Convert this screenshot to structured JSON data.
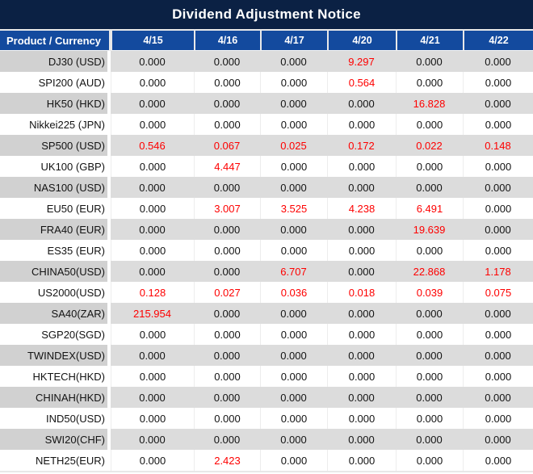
{
  "chart_data": {
    "type": "table",
    "title": "Dividend Adjustment Notice",
    "columns": [
      "Product / Currency",
      "4/15",
      "4/16",
      "4/17",
      "4/20",
      "4/21",
      "4/22"
    ],
    "rows": [
      {
        "label": "DJ30 (USD)",
        "values": [
          "0.000",
          "0.000",
          "0.000",
          "9.297",
          "0.000",
          "0.000"
        ],
        "red": [
          3
        ]
      },
      {
        "label": "SPI200 (AUD)",
        "values": [
          "0.000",
          "0.000",
          "0.000",
          "0.564",
          "0.000",
          "0.000"
        ],
        "red": [
          3
        ]
      },
      {
        "label": "HK50 (HKD)",
        "values": [
          "0.000",
          "0.000",
          "0.000",
          "0.000",
          "16.828",
          "0.000"
        ],
        "red": [
          4
        ]
      },
      {
        "label": "Nikkei225 (JPN)",
        "values": [
          "0.000",
          "0.000",
          "0.000",
          "0.000",
          "0.000",
          "0.000"
        ],
        "red": []
      },
      {
        "label": "SP500 (USD)",
        "values": [
          "0.546",
          "0.067",
          "0.025",
          "0.172",
          "0.022",
          "0.148"
        ],
        "red": [
          0,
          1,
          2,
          3,
          4,
          5
        ]
      },
      {
        "label": "UK100 (GBP)",
        "values": [
          "0.000",
          "4.447",
          "0.000",
          "0.000",
          "0.000",
          "0.000"
        ],
        "red": [
          1
        ]
      },
      {
        "label": "NAS100 (USD)",
        "values": [
          "0.000",
          "0.000",
          "0.000",
          "0.000",
          "0.000",
          "0.000"
        ],
        "red": []
      },
      {
        "label": "EU50 (EUR)",
        "values": [
          "0.000",
          "3.007",
          "3.525",
          "4.238",
          "6.491",
          "0.000"
        ],
        "red": [
          1,
          2,
          3,
          4
        ]
      },
      {
        "label": "FRA40 (EUR)",
        "values": [
          "0.000",
          "0.000",
          "0.000",
          "0.000",
          "19.639",
          "0.000"
        ],
        "red": [
          4
        ]
      },
      {
        "label": "ES35 (EUR)",
        "values": [
          "0.000",
          "0.000",
          "0.000",
          "0.000",
          "0.000",
          "0.000"
        ],
        "red": []
      },
      {
        "label": "CHINA50(USD)",
        "values": [
          "0.000",
          "0.000",
          "6.707",
          "0.000",
          "22.868",
          "1.178"
        ],
        "red": [
          2,
          4,
          5
        ]
      },
      {
        "label": "US2000(USD)",
        "values": [
          "0.128",
          "0.027",
          "0.036",
          "0.018",
          "0.039",
          "0.075"
        ],
        "red": [
          0,
          1,
          2,
          3,
          4,
          5
        ]
      },
      {
        "label": "SA40(ZAR)",
        "values": [
          "215.954",
          "0.000",
          "0.000",
          "0.000",
          "0.000",
          "0.000"
        ],
        "red": [
          0
        ]
      },
      {
        "label": "SGP20(SGD)",
        "values": [
          "0.000",
          "0.000",
          "0.000",
          "0.000",
          "0.000",
          "0.000"
        ],
        "red": []
      },
      {
        "label": "TWINDEX(USD)",
        "values": [
          "0.000",
          "0.000",
          "0.000",
          "0.000",
          "0.000",
          "0.000"
        ],
        "red": []
      },
      {
        "label": "HKTECH(HKD)",
        "values": [
          "0.000",
          "0.000",
          "0.000",
          "0.000",
          "0.000",
          "0.000"
        ],
        "red": []
      },
      {
        "label": "CHINAH(HKD)",
        "values": [
          "0.000",
          "0.000",
          "0.000",
          "0.000",
          "0.000",
          "0.000"
        ],
        "red": []
      },
      {
        "label": "IND50(USD)",
        "values": [
          "0.000",
          "0.000",
          "0.000",
          "0.000",
          "0.000",
          "0.000"
        ],
        "red": []
      },
      {
        "label": "SWI20(CHF)",
        "values": [
          "0.000",
          "0.000",
          "0.000",
          "0.000",
          "0.000",
          "0.000"
        ],
        "red": []
      },
      {
        "label": "NETH25(EUR)",
        "values": [
          "0.000",
          "2.423",
          "0.000",
          "0.000",
          "0.000",
          "0.000"
        ],
        "red": [
          1
        ]
      }
    ]
  },
  "colors": {
    "title_bg": "#0b2144",
    "header_bg": "#134a9e",
    "header_text": "#ffffff",
    "row_gray_label": "#d1d1d1",
    "row_gray_data": "#dcdcdc",
    "row_white": "#ffffff",
    "value_text": "#131313",
    "red_value": "#fe0000"
  },
  "layout_hints": {
    "zebra_striping": "odd rows gray, even rows white",
    "red_meaning": "non-zero dividend adjustment values shown in red"
  }
}
